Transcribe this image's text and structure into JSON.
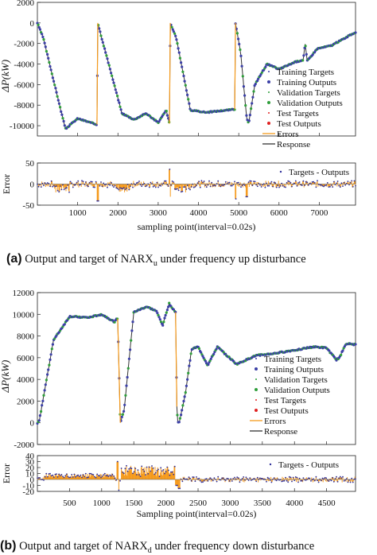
{
  "captions": [
    {
      "tag": "(a)",
      "text": "Output and target of NARX",
      "sub": "u",
      "rest": " under frequency up disturbance"
    },
    {
      "tag": "(b)",
      "text": "Output and target of NARX",
      "sub": "d",
      "rest": " under frequency down disturbance"
    }
  ],
  "legend_labels": [
    "Training Targets",
    "Training Outputs",
    "Validation Targets",
    "Validation Outputs",
    "Test Targets",
    "Test Outputs",
    "Errors",
    "Response"
  ],
  "error_legend_label": "Targets - Outputs",
  "colors": {
    "training": "#3b3fa6",
    "validation": "#2e9e3a",
    "test": "#e02020",
    "errors": "#f59a1c",
    "response": "#333333",
    "targets": "#2f2f9a"
  },
  "chart_data": [
    {
      "panel": "a",
      "type": "line",
      "ylabel": "ΔP(kW)",
      "xlim": [
        0,
        7900
      ],
      "ylim": [
        -11000,
        2000
      ],
      "yticks": [
        2000,
        0,
        -2000,
        -4000,
        -6000,
        -8000,
        -10000
      ],
      "x_anchor": [
        0,
        150,
        600,
        700,
        1000,
        1480,
        1500,
        1600,
        2100,
        2400,
        2700,
        3000,
        3200,
        3280,
        3300,
        3450,
        3800,
        4200,
        4900,
        4920,
        5050,
        5200,
        5250,
        5400,
        5700,
        6000,
        6400,
        6600,
        6650,
        6700,
        6950,
        7300,
        7900
      ],
      "y_anchor": [
        0,
        -1500,
        -8800,
        -10300,
        -9300,
        -9900,
        0,
        -1500,
        -8800,
        -9400,
        -8800,
        -9700,
        -8500,
        -9800,
        0,
        -1500,
        -8500,
        -8700,
        -8400,
        0,
        -3000,
        -9400,
        -9700,
        -6000,
        -4000,
        -4500,
        -3800,
        -3600,
        -2000,
        -3700,
        -2500,
        -2200,
        -900
      ],
      "error": {
        "ylabel": "Error",
        "ylim": [
          -50,
          50
        ],
        "yticks": [
          50,
          0,
          -50
        ],
        "spikes": [
          [
            1500,
            -40,
            45
          ],
          [
            3290,
            -30,
            35
          ],
          [
            4920,
            -35,
            30
          ],
          [
            5200,
            -30,
            45
          ]
        ]
      },
      "xlabel": "sampling point(interval=0.02s)",
      "xticks": [
        1000,
        2000,
        3000,
        4000,
        5000,
        6000,
        7000
      ]
    },
    {
      "panel": "b",
      "type": "line",
      "ylabel": "ΔP(kW)",
      "xlim": [
        0,
        4950
      ],
      "ylim": [
        -2000,
        12000
      ],
      "yticks": [
        12000,
        10000,
        8000,
        6000,
        4000,
        2000,
        0,
        -2000
      ],
      "x_anchor": [
        0,
        30,
        250,
        500,
        800,
        1000,
        1200,
        1240,
        1250,
        1290,
        1350,
        1500,
        1700,
        1850,
        1950,
        2050,
        2150,
        2170,
        2185,
        2210,
        2300,
        2400,
        2500,
        2650,
        2800,
        3100,
        3400,
        3700,
        3900,
        4100,
        4300,
        4500,
        4650,
        4700,
        4800,
        4950
      ],
      "y_anchor": [
        0,
        200,
        7600,
        9800,
        9700,
        10000,
        9300,
        9600,
        9600,
        0,
        1200,
        10200,
        10700,
        10300,
        9000,
        11000,
        10200,
        1500,
        0,
        100,
        2600,
        6800,
        7000,
        5300,
        7000,
        5400,
        6200,
        6400,
        6600,
        6800,
        7000,
        6900,
        5800,
        6000,
        7300,
        7200
      ],
      "error": {
        "ylabel": "Error",
        "ylim": [
          -20,
          40
        ],
        "yticks": [
          40,
          30,
          20,
          10,
          0,
          -10,
          -20
        ],
        "spikes": [
          [
            1250,
            -18,
            30
          ],
          [
            2160,
            -10,
            40
          ],
          [
            2200,
            -15,
            20
          ]
        ]
      },
      "xlabel": "Sampling point(interval=0.02s)",
      "xticks": [
        500,
        1000,
        1500,
        2000,
        2500,
        3000,
        3500,
        4000,
        4500
      ]
    }
  ]
}
